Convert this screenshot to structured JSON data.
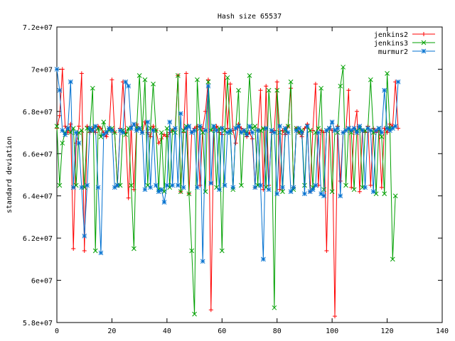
{
  "chart_data": {
    "type": "line",
    "title": "Hash size 65537",
    "xlabel": "",
    "ylabel": "standard deviation",
    "xlim": [
      0,
      140
    ],
    "ylim": [
      58000000,
      72000000
    ],
    "x_ticks": [
      0,
      20,
      40,
      60,
      80,
      100,
      120,
      140
    ],
    "x_tick_labels": [
      "0",
      "20",
      "40",
      "60",
      "80",
      "100",
      "120",
      "140"
    ],
    "y_ticks": [
      58000000,
      60000000,
      62000000,
      64000000,
      66000000,
      68000000,
      70000000,
      72000000
    ],
    "y_tick_labels": [
      "5.8e+07",
      "6e+07",
      "6.2e+07",
      "6.4e+07",
      "6.6e+07",
      "6.8e+07",
      "7e+07",
      "7.2e+07"
    ],
    "grid": false,
    "legend_position": "top-right",
    "series": [
      {
        "name": "jenkins2",
        "color": "#ff0000",
        "marker": "plus",
        "values": [
          67.2,
          67.8,
          70.0,
          67.3,
          67.0,
          67.4,
          61.5,
          66.5,
          67.3,
          69.8,
          61.4,
          67.3,
          67.0,
          67.2,
          67.0,
          67.3,
          67.2,
          67.0,
          66.8,
          67.2,
          69.5,
          67.0,
          64.5,
          67.2,
          69.4,
          67.0,
          63.9,
          67.3,
          64.3,
          67.4,
          67.2,
          67.0,
          67.5,
          67.0,
          66.8,
          67.3,
          67.1,
          66.5,
          66.7,
          66.9,
          66.8,
          67.0,
          67.1,
          67.2,
          69.7,
          64.2,
          67.0,
          69.8,
          64.1,
          67.0,
          67.2,
          67.3,
          64.5,
          67.2,
          68.0,
          69.5,
          58.6,
          67.1,
          67.3,
          67.0,
          66.9,
          69.8,
          67.2,
          69.3,
          67.1,
          66.5,
          67.4,
          67.2,
          67.1,
          66.8,
          67.0,
          66.7,
          64.4,
          67.1,
          69.0,
          64.3,
          69.2,
          64.5,
          67.0,
          67.1,
          69.4,
          64.3,
          67.1,
          66.9,
          67.3,
          69.1,
          64.4,
          67.2,
          67.0,
          66.8,
          67.2,
          67.4,
          64.2,
          67.1,
          69.3,
          64.5,
          67.1,
          67.0,
          61.4,
          67.2,
          67.1,
          58.3,
          67.3,
          64.7,
          67.0,
          67.1,
          69.0,
          64.4,
          67.2,
          68.0,
          64.2,
          67.1,
          67.0,
          67.3,
          64.5,
          67.2,
          67.0,
          67.1,
          64.4,
          67.2,
          67.0,
          67.4,
          67.3,
          69.4,
          67.2
        ]
      },
      {
        "name": "jenkins3",
        "color": "#00a000",
        "marker": "cross",
        "values": [
          67.3,
          64.5,
          66.5,
          67.0,
          67.2,
          67.0,
          67.2,
          64.5,
          67.0,
          67.1,
          64.4,
          67.2,
          67.1,
          69.1,
          61.4,
          67.2,
          66.8,
          67.5,
          67.0,
          67.1,
          67.2,
          67.0,
          64.5,
          64.5,
          67.1,
          66.9,
          67.2,
          64.5,
          61.5,
          67.2,
          69.7,
          67.0,
          69.5,
          64.5,
          67.2,
          69.3,
          67.1,
          64.3,
          67.0,
          64.2,
          67.2,
          64.4,
          67.1,
          67.0,
          69.7,
          64.2,
          67.1,
          67.3,
          64.1,
          61.4,
          58.4,
          69.5,
          67.2,
          67.0,
          64.2,
          69.4,
          67.1,
          67.3,
          64.4,
          67.2,
          61.4,
          67.1,
          69.6,
          67.0,
          64.3,
          67.2,
          69.0,
          64.5,
          67.1,
          67.0,
          69.7,
          67.2,
          67.3,
          64.5,
          67.1,
          67.2,
          64.4,
          69.0,
          67.1,
          58.7,
          69.0,
          67.0,
          64.2,
          67.1,
          67.3,
          69.4,
          64.3,
          67.2,
          67.0,
          67.1,
          64.5,
          67.3,
          67.1,
          64.4,
          67.0,
          67.2,
          69.1,
          64.3,
          67.1,
          67.2,
          64.2,
          67.1,
          67.0,
          69.2,
          70.1,
          64.5,
          67.2,
          67.0,
          64.3,
          67.1,
          67.2,
          64.4,
          67.1,
          67.2,
          69.5,
          67.0,
          64.1,
          67.2,
          66.8,
          64.1,
          69.8,
          67.2,
          61.0,
          64.0
        ]
      },
      {
        "name": "murmur2",
        "color": "#0070d0",
        "marker": "star",
        "values": [
          70.0,
          69.0,
          67.1,
          66.9,
          67.2,
          69.4,
          64.4,
          67.0,
          66.5,
          64.4,
          62.1,
          64.5,
          67.2,
          67.1,
          67.3,
          64.4,
          61.3,
          66.9,
          67.0,
          67.2,
          67.1,
          64.4,
          64.5,
          67.1,
          67.0,
          69.4,
          69.2,
          67.2,
          67.4,
          67.1,
          67.2,
          67.0,
          64.3,
          67.5,
          64.4,
          67.1,
          64.5,
          64.2,
          64.3,
          63.7,
          64.5,
          67.5,
          64.5,
          67.2,
          64.5,
          67.9,
          64.4,
          67.2,
          67.3,
          67.0,
          67.1,
          64.4,
          67.3,
          60.9,
          67.1,
          69.2,
          64.6,
          67.3,
          67.1,
          64.3,
          67.2,
          64.5,
          67.0,
          67.1,
          64.4,
          67.2,
          67.3,
          67.0,
          67.1,
          66.9,
          67.3,
          67.0,
          64.4,
          67.1,
          64.5,
          61.0,
          67.2,
          64.3,
          67.1,
          67.0,
          64.1,
          67.3,
          64.4,
          67.2,
          67.0,
          64.2,
          64.4,
          67.1,
          67.2,
          67.0,
          64.1,
          67.3,
          64.2,
          64.3,
          64.5,
          67.0,
          64.1,
          64.0,
          67.1,
          67.2,
          67.5,
          67.1,
          67.2,
          64.0,
          67.0,
          67.1,
          67.2,
          67.1,
          67.2,
          67.0,
          67.3,
          67.1,
          64.4,
          67.2,
          67.1,
          64.2,
          67.1,
          67.2,
          67.0,
          69.0,
          67.2,
          67.1,
          67.2,
          67.3,
          69.4
        ]
      }
    ]
  }
}
